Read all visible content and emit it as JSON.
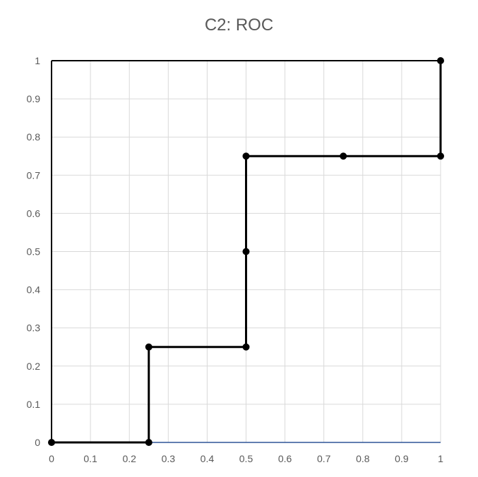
{
  "chart_data": {
    "type": "line",
    "title": "C2: ROC",
    "xlabel": "",
    "ylabel": "",
    "xlim": [
      0,
      1
    ],
    "ylim": [
      0,
      1
    ],
    "grid": true,
    "legend": "none",
    "x_ticks": [
      "0",
      "0.1",
      "0.2",
      "0.3",
      "0.4",
      "0.5",
      "0.6",
      "0.7",
      "0.8",
      "0.9",
      "1"
    ],
    "y_ticks": [
      "0",
      "0.1",
      "0.2",
      "0.3",
      "0.4",
      "0.5",
      "0.6",
      "0.7",
      "0.8",
      "0.9",
      "1"
    ],
    "series": [
      {
        "x": [
          0,
          0.25,
          0.25,
          0.5,
          0.5,
          0.5,
          0.75,
          1,
          1
        ],
        "y": [
          0,
          0,
          0.25,
          0.25,
          0.5,
          0.75,
          0.75,
          0.75,
          1
        ],
        "color": "#000000",
        "markers": true
      },
      {
        "x": [
          0,
          1
        ],
        "y": [
          0,
          0
        ],
        "color": "#2f5597",
        "markers": false
      }
    ]
  }
}
